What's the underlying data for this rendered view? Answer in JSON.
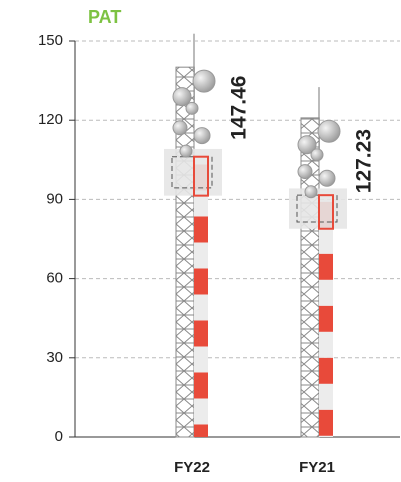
{
  "chart_data": {
    "type": "bar",
    "title": "PAT",
    "categories": [
      "FY22",
      "FY21"
    ],
    "values": [
      147.46,
      127.23
    ],
    "ylim": [
      0,
      150
    ],
    "yticks": [
      0,
      30,
      60,
      90,
      120,
      150
    ],
    "grid": true,
    "color": "#e84a3a"
  }
}
